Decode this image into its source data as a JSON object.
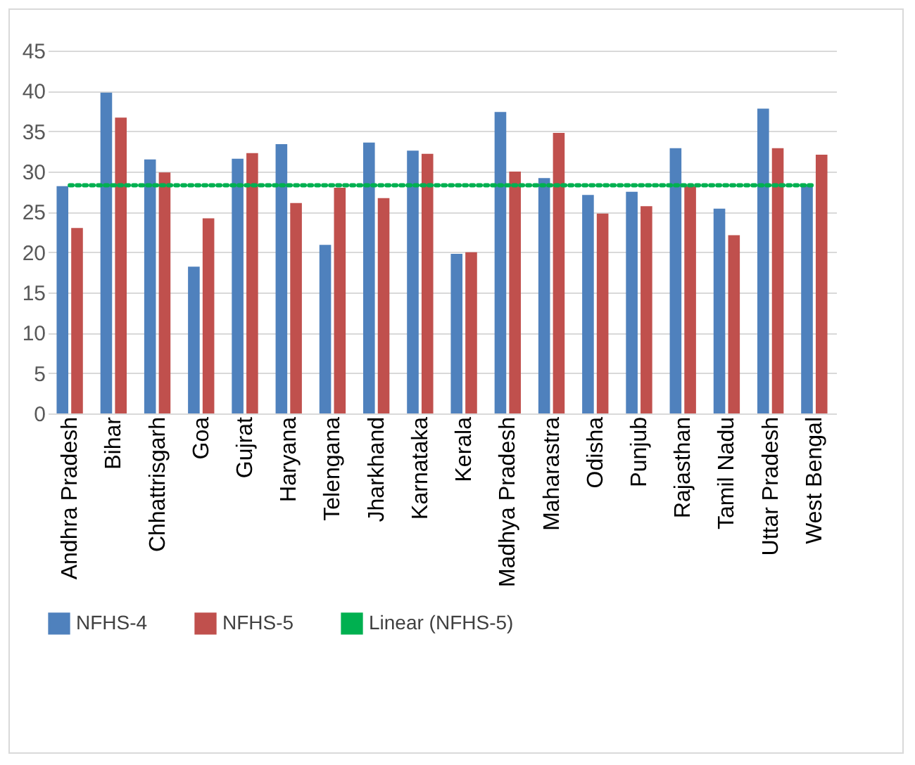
{
  "chart_data": {
    "type": "bar",
    "categories": [
      "Andhra Pradesh",
      "Bihar",
      "Chhattrisgarh",
      "Goa",
      "Gujrat",
      "Haryana",
      "Telengana",
      "Jharkhand",
      "Karnataka",
      "Kerala",
      "Madhya Pradesh",
      "Maharastra",
      "Odisha",
      "Punjub",
      "Rajasthan",
      "Tamil Nadu",
      "Uttar Pradesh",
      "West Bengal"
    ],
    "series": [
      {
        "name": "NFHS-4",
        "color": "#4f81bd",
        "values": [
          28.2,
          39.8,
          31.5,
          18.2,
          31.6,
          33.4,
          20.9,
          33.6,
          32.6,
          19.8,
          37.4,
          29.2,
          27.1,
          27.5,
          32.9,
          25.4,
          37.8,
          28.4
        ]
      },
      {
        "name": "NFHS-5",
        "color": "#c0504d",
        "values": [
          23.0,
          36.7,
          29.9,
          24.2,
          32.3,
          26.1,
          28.0,
          26.7,
          32.2,
          20.0,
          30.0,
          34.8,
          24.8,
          25.7,
          28.2,
          22.1,
          32.9,
          32.1
        ]
      },
      {
        "name": "Linear (NFHS-5)",
        "type": "line",
        "color": "#00b050",
        "line_style": "dotted",
        "marker": "none",
        "values": [
          28.3,
          28.3,
          28.3,
          28.3,
          28.3,
          28.3,
          28.3,
          28.3,
          28.3,
          28.3,
          28.3,
          28.3,
          28.3,
          28.3,
          28.3,
          28.3,
          28.3,
          28.3
        ]
      }
    ],
    "ylim": [
      0,
      45
    ],
    "yticks": [
      0,
      5,
      10,
      15,
      20,
      25,
      30,
      35,
      40,
      45
    ],
    "grid": "y",
    "legend": "bottom"
  }
}
